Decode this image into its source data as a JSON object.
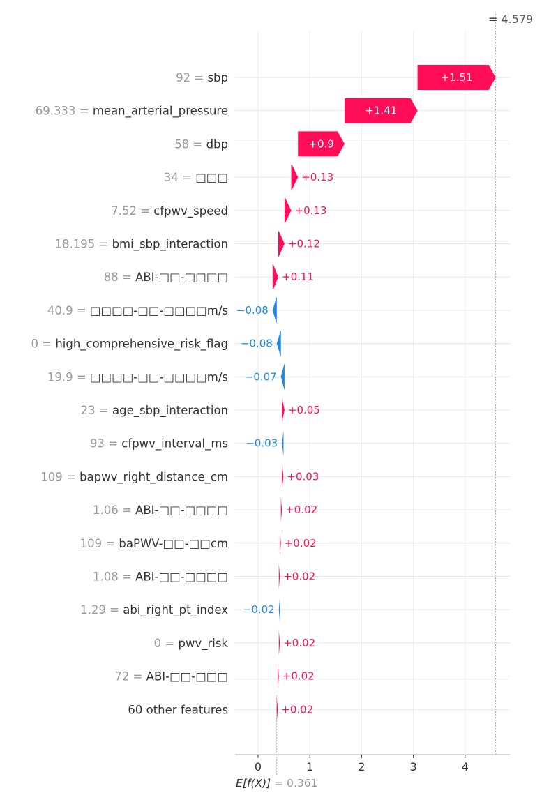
{
  "chart_data": {
    "type": "waterfall",
    "final_value": "4.579",
    "final_prefix": "=",
    "base_value": "0.361",
    "base_label": "E[f(X)]",
    "base_prefix": "=",
    "xlim": [
      -0.45,
      4.85
    ],
    "xticks": [
      0,
      1,
      2,
      3,
      4
    ],
    "colors": {
      "positive": "#ff0d57",
      "negative": "#1e88e5",
      "value_text": "#999999",
      "name_text": "#333333",
      "grid": "#e5e5e5",
      "axis": "#cccccc"
    },
    "features": [
      {
        "value": "92",
        "name": "sbp",
        "contribution": 1.51,
        "label": "+1.51"
      },
      {
        "value": "69.333",
        "name": "mean_arterial_pressure",
        "contribution": 1.41,
        "label": "+1.41"
      },
      {
        "value": "58",
        "name": "dbp",
        "contribution": 0.9,
        "label": "+0.9"
      },
      {
        "value": "34",
        "name": "□□□",
        "contribution": 0.13,
        "label": "+0.13"
      },
      {
        "value": "7.52",
        "name": "cfpwv_speed",
        "contribution": 0.13,
        "label": "+0.13"
      },
      {
        "value": "18.195",
        "name": "bmi_sbp_interaction",
        "contribution": 0.12,
        "label": "+0.12"
      },
      {
        "value": "88",
        "name": "ABI-□□-□□□□",
        "contribution": 0.11,
        "label": "+0.11"
      },
      {
        "value": "40.9",
        "name": "□□□□-□□-□□□□m/s",
        "contribution": -0.08,
        "label": "−0.08"
      },
      {
        "value": "0",
        "name": "high_comprehensive_risk_flag",
        "contribution": -0.08,
        "label": "−0.08"
      },
      {
        "value": "19.9",
        "name": "□□□□-□□-□□□□m/s",
        "contribution": -0.07,
        "label": "−0.07"
      },
      {
        "value": "23",
        "name": "age_sbp_interaction",
        "contribution": 0.05,
        "label": "+0.05"
      },
      {
        "value": "93",
        "name": "cfpwv_interval_ms",
        "contribution": -0.03,
        "label": "−0.03"
      },
      {
        "value": "109",
        "name": "bapwv_right_distance_cm",
        "contribution": 0.03,
        "label": "+0.03"
      },
      {
        "value": "1.06",
        "name": "ABI-□□-□□□□",
        "contribution": 0.02,
        "label": "+0.02"
      },
      {
        "value": "109",
        "name": "baPWV-□□-□□cm",
        "contribution": 0.02,
        "label": "+0.02"
      },
      {
        "value": "1.08",
        "name": "ABI-□□-□□□□",
        "contribution": 0.02,
        "label": "+0.02"
      },
      {
        "value": "1.29",
        "name": "abi_right_pt_index",
        "contribution": -0.02,
        "label": "−0.02"
      },
      {
        "value": "0",
        "name": "pwv_risk",
        "contribution": 0.02,
        "label": "+0.02"
      },
      {
        "value": "72",
        "name": "ABI-□□-□□□",
        "contribution": 0.02,
        "label": "+0.02"
      },
      {
        "value": "",
        "name": "60 other features",
        "contribution": 0.02,
        "label": "+0.02"
      }
    ]
  }
}
